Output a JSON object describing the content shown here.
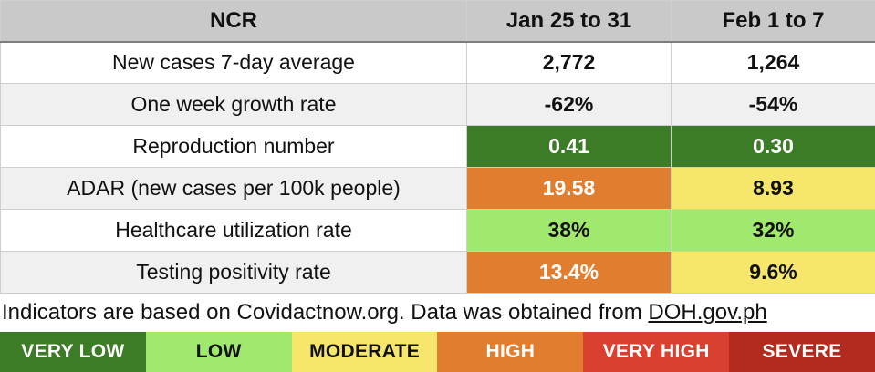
{
  "chart_data": {
    "type": "table",
    "title": "NCR",
    "columns": [
      "NCR",
      "Jan 25 to 31",
      "Feb 1 to 7"
    ],
    "rows": [
      {
        "label": "New cases 7-day average",
        "cells": [
          {
            "value": "2,772",
            "tone": null
          },
          {
            "value": "1,264",
            "tone": null
          }
        ]
      },
      {
        "label": "One week growth rate",
        "cells": [
          {
            "value": "-62%",
            "tone": null
          },
          {
            "value": "-54%",
            "tone": null
          }
        ]
      },
      {
        "label": "Reproduction number",
        "cells": [
          {
            "value": "0.41",
            "tone": "very_low"
          },
          {
            "value": "0.30",
            "tone": "very_low"
          }
        ]
      },
      {
        "label": "ADAR (new cases per 100k people)",
        "cells": [
          {
            "value": "19.58",
            "tone": "high"
          },
          {
            "value": "8.93",
            "tone": "moderate"
          }
        ]
      },
      {
        "label": "Healthcare utilization rate",
        "cells": [
          {
            "value": "38%",
            "tone": "low"
          },
          {
            "value": "32%",
            "tone": "low"
          }
        ]
      },
      {
        "label": "Testing positivity rate",
        "cells": [
          {
            "value": "13.4%",
            "tone": "high"
          },
          {
            "value": "9.6%",
            "tone": "moderate"
          }
        ]
      }
    ],
    "legend_position": "bottom",
    "legend": [
      {
        "key": "very_low",
        "label": "VERY LOW"
      },
      {
        "key": "low",
        "label": "LOW"
      },
      {
        "key": "moderate",
        "label": "MODERATE"
      },
      {
        "key": "high",
        "label": "HIGH"
      },
      {
        "key": "very_high",
        "label": "VERY HIGH"
      },
      {
        "key": "severe",
        "label": "SEVERE"
      }
    ]
  },
  "tones": {
    "very_low": {
      "bg": "#3c7c26",
      "fg": "#ffffff"
    },
    "low": {
      "bg": "#a1e86f",
      "fg": "#111111"
    },
    "moderate": {
      "bg": "#f6e66c",
      "fg": "#111111"
    },
    "high": {
      "bg": "#e17d2f",
      "fg": "#ffffff"
    },
    "very_high": {
      "bg": "#d94030",
      "fg": "#ffffff"
    },
    "severe": {
      "bg": "#b32b1e",
      "fg": "#ffffff"
    }
  },
  "colors": {
    "header_bg": "#c9c9c9",
    "row_alt_bg": "#f0f0f0",
    "grid_line": "#cfcfcf"
  },
  "footer": {
    "text": "Indicators are based on Covidactnow.org. Data was obtained from ",
    "link": "DOH.gov.ph"
  }
}
